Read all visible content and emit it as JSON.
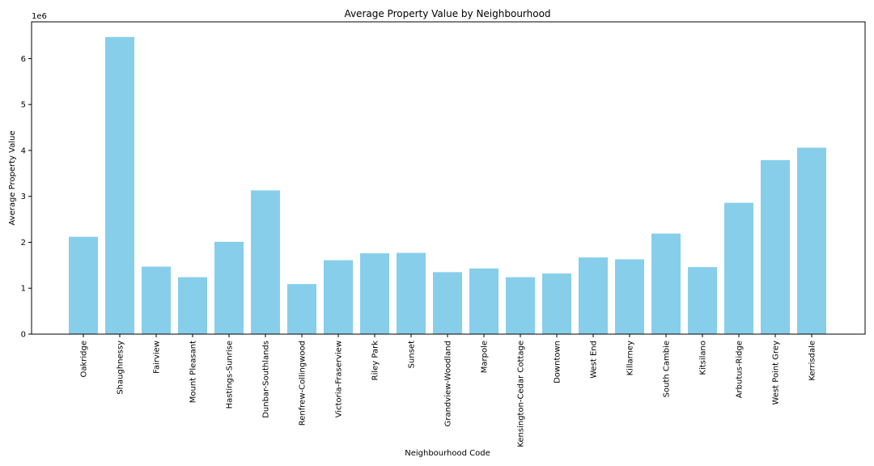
{
  "chart_data": {
    "type": "bar",
    "title": "Average Property Value by Neighbourhood",
    "xlabel": "Neighbourhood Code",
    "ylabel": "Average Property Value",
    "y_offset_label": "1e6",
    "ylim": [
      0,
      6800000
    ],
    "yticks": [
      {
        "value": 0,
        "label": "0"
      },
      {
        "value": 1000000,
        "label": "1"
      },
      {
        "value": 2000000,
        "label": "2"
      },
      {
        "value": 3000000,
        "label": "3"
      },
      {
        "value": 4000000,
        "label": "4"
      },
      {
        "value": 5000000,
        "label": "5"
      },
      {
        "value": 6000000,
        "label": "6"
      }
    ],
    "categories": [
      "Oakridge",
      "Shaughnessy",
      "Fairview",
      "Mount Pleasant",
      "Hastings-Sunrise",
      "Dunbar-Southlands",
      "Renfrew-Collingwood",
      "Victoria-Fraserview",
      "Riley Park",
      "Sunset",
      "Grandview-Woodland",
      "Marpole",
      "Kensington-Cedar Cottage",
      "Downtown",
      "West End",
      "Killarney",
      "South Cambie",
      "Kitsilano",
      "Arbutus-Ridge",
      "West Point Grey",
      "Kerrisdale"
    ],
    "values": [
      2120000,
      6470000,
      1470000,
      1240000,
      2010000,
      3130000,
      1090000,
      1610000,
      1760000,
      1770000,
      1350000,
      1430000,
      1240000,
      1320000,
      1670000,
      1630000,
      2190000,
      1460000,
      2860000,
      3790000,
      4060000
    ],
    "bar_color": "#87ceeb",
    "grid": false,
    "legend": "none"
  }
}
